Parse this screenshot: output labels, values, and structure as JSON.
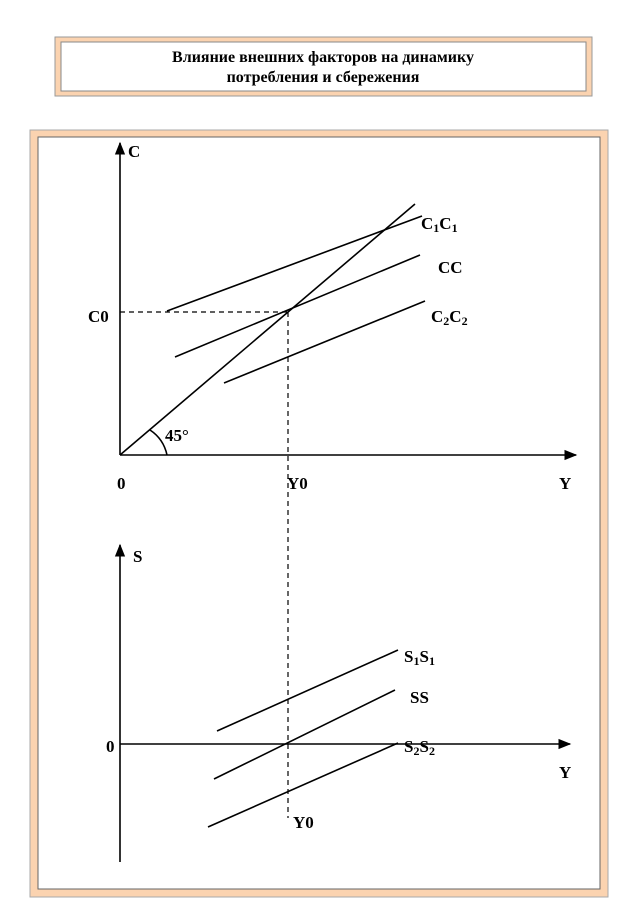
{
  "header": {
    "title_lines": [
      "Влияние внешних факторов на динамику",
      "потребления и сбережения"
    ]
  },
  "top_graph": {
    "axis_y": "C",
    "axis_x": "Y",
    "origin": "0",
    "level_label": "C0",
    "income_label": "Y0",
    "angle_label": "45°",
    "lines": [
      "C1C1",
      "CC",
      "C2C2"
    ]
  },
  "bottom_graph": {
    "axis_y": "S",
    "axis_x": "Y",
    "origin": "0",
    "income_label": "Y0",
    "lines": [
      "S1S1",
      "SS",
      "S2S2"
    ]
  }
}
